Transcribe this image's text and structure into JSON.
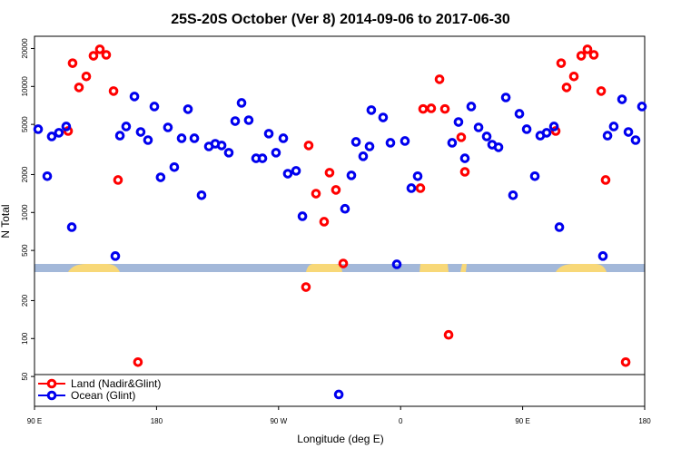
{
  "chart_data": {
    "type": "scatter",
    "title": "25S-20S October (Ver 8)   2014-09-06 to 2017-06-30",
    "xlabel": "Longitude (deg E)",
    "ylabel": "N Total",
    "xlim": [
      90,
      540
    ],
    "xticks": [
      {
        "value": 90,
        "label": "90 E"
      },
      {
        "value": 180,
        "label": "180"
      },
      {
        "value": 270,
        "label": "90 W"
      },
      {
        "value": 360,
        "label": "0"
      },
      {
        "value": 450,
        "label": "90 E"
      },
      {
        "value": 540,
        "label": "180"
      }
    ],
    "ylim": [
      29,
      25000
    ],
    "ylog": true,
    "yticks": [
      50,
      100,
      200,
      500,
      1000,
      2000,
      5000,
      10000,
      20000
    ],
    "legend": "bottom",
    "series": [
      {
        "name": "Land (Nadir&Glint)",
        "color": "#ff0000",
        "x": [
          114.8,
          118.1,
          122.8,
          128.2,
          133.5,
          138.2,
          142.9,
          148.3,
          151.6,
          166.3,
          290.2,
          292.2,
          297.6,
          303.6,
          307.6,
          312.3,
          317.7,
          374.6,
          376.6,
          382.6,
          388.7,
          392.7,
          395.4,
          404.7,
          407.4,
          474.4,
          478.4,
          482.4,
          487.8,
          493.2,
          497.8,
          502.5,
          507.9,
          511.2,
          526
        ],
        "values": [
          4430,
          15300,
          9820,
          12000,
          17500,
          19700,
          17800,
          9190,
          1810,
          65,
          256,
          3400,
          1410,
          845,
          2070,
          1510,
          394,
          1560,
          6630,
          6700,
          11400,
          6630,
          107,
          3950,
          2100,
          4430,
          15300,
          9820,
          12000,
          17500,
          19700,
          17800,
          9190,
          1810,
          65
        ]
      },
      {
        "name": "Ocean (Glint)",
        "color": "#0000ee",
        "x": [
          92.7,
          99.4,
          102.7,
          108,
          113.4,
          117.5,
          149.6,
          153,
          157.6,
          163.7,
          168.3,
          173.7,
          178.4,
          183,
          188.4,
          193.1,
          198.5,
          203.2,
          207.9,
          213.2,
          218.6,
          223.3,
          228,
          233.3,
          238,
          242.7,
          248,
          253.4,
          258.1,
          262.8,
          268.1,
          273.5,
          276.8,
          282.9,
          287.6,
          314.4,
          319,
          323.7,
          327.1,
          332.4,
          337.1,
          338.4,
          347.1,
          352.5,
          357.2,
          363.2,
          367.9,
          372.6,
          398,
          402.7,
          407.4,
          412.1,
          417.5,
          423.5,
          427.5,
          432.2,
          437.6,
          442.9,
          447.6,
          453,
          459,
          463,
          467.7,
          473.1,
          477.1,
          509.2,
          512.6,
          517.2,
          523.3,
          528,
          533.3,
          538
        ],
        "values": [
          4580,
          1940,
          4010,
          4290,
          4810,
          765,
          451,
          4070,
          4810,
          8320,
          4350,
          3750,
          6930,
          1900,
          4730,
          2290,
          3880,
          6600,
          3880,
          1370,
          3340,
          3510,
          3400,
          2980,
          5310,
          7400,
          5400,
          2690,
          2690,
          4220,
          2980,
          3880,
          2030,
          2140,
          933,
          36,
          1070,
          1970,
          3630,
          2790,
          3340,
          6490,
          5670,
          3570,
          388,
          3690,
          1560,
          1940,
          3570,
          5220,
          2690,
          6930,
          4730,
          4010,
          3450,
          3290,
          8170,
          1370,
          6070,
          4580,
          1940,
          4070,
          4290,
          4810,
          765,
          451,
          4070,
          4810,
          7900,
          4350,
          3750,
          6930
        ]
      }
    ]
  }
}
